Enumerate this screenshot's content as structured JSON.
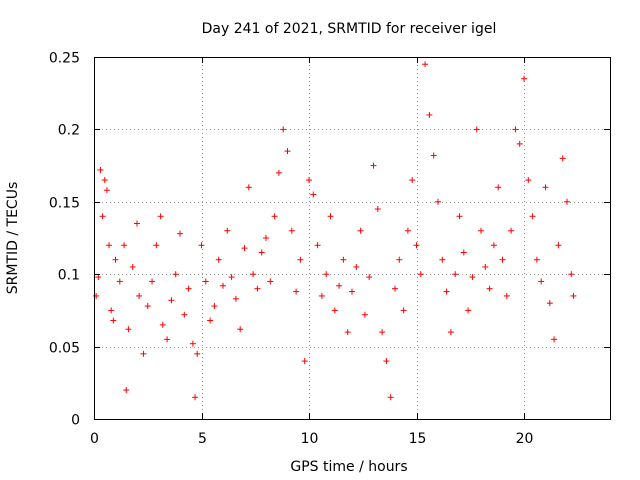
{
  "chart_data": {
    "type": "scatter",
    "title": "Day 241 of 2021, SRMTID for receiver igel",
    "xlabel": "GPS time / hours",
    "ylabel": "SRMTID / TECUs",
    "xlim": [
      0,
      24
    ],
    "ylim": [
      0,
      0.25
    ],
    "xticks": [
      0,
      5,
      10,
      15,
      20
    ],
    "xtick_labels": [
      "0",
      "5",
      "10",
      "15",
      "20"
    ],
    "yticks": [
      0,
      0.05,
      0.1,
      0.15,
      0.2,
      0.25
    ],
    "ytick_labels": [
      "0",
      "0.05",
      "0.1",
      "0.15",
      "0.2",
      "0.25"
    ],
    "grid": true,
    "marker": "+",
    "color": "#ff0000",
    "series": [
      {
        "name": "SRMTID",
        "points": [
          [
            0.1,
            0.085
          ],
          [
            0.2,
            0.098
          ],
          [
            0.3,
            0.172
          ],
          [
            0.4,
            0.14
          ],
          [
            0.5,
            0.165
          ],
          [
            0.6,
            0.158
          ],
          [
            0.7,
            0.12
          ],
          [
            0.8,
            0.075
          ],
          [
            0.9,
            0.068
          ],
          [
            1.0,
            0.11
          ],
          [
            1.2,
            0.095
          ],
          [
            1.4,
            0.12
          ],
          [
            1.5,
            0.02
          ],
          [
            1.6,
            0.062
          ],
          [
            1.8,
            0.105
          ],
          [
            2.0,
            0.135
          ],
          [
            2.1,
            0.085
          ],
          [
            2.3,
            0.045
          ],
          [
            2.5,
            0.078
          ],
          [
            2.7,
            0.095
          ],
          [
            2.9,
            0.12
          ],
          [
            3.1,
            0.14
          ],
          [
            3.2,
            0.065
          ],
          [
            3.4,
            0.055
          ],
          [
            3.6,
            0.082
          ],
          [
            3.8,
            0.1
          ],
          [
            4.0,
            0.128
          ],
          [
            4.2,
            0.072
          ],
          [
            4.4,
            0.09
          ],
          [
            4.6,
            0.052
          ],
          [
            4.7,
            0.015
          ],
          [
            4.8,
            0.045
          ],
          [
            5.0,
            0.12
          ],
          [
            5.2,
            0.095
          ],
          [
            5.4,
            0.068
          ],
          [
            5.6,
            0.078
          ],
          [
            5.8,
            0.11
          ],
          [
            6.0,
            0.092
          ],
          [
            6.2,
            0.13
          ],
          [
            6.4,
            0.098
          ],
          [
            6.6,
            0.083
          ],
          [
            6.8,
            0.062
          ],
          [
            7.0,
            0.118
          ],
          [
            7.2,
            0.16
          ],
          [
            7.4,
            0.1
          ],
          [
            7.6,
            0.09
          ],
          [
            7.8,
            0.115
          ],
          [
            8.0,
            0.125
          ],
          [
            8.2,
            0.095
          ],
          [
            8.4,
            0.14
          ],
          [
            8.6,
            0.17
          ],
          [
            8.8,
            0.2
          ],
          [
            9.0,
            0.185
          ],
          [
            9.2,
            0.13
          ],
          [
            9.4,
            0.088
          ],
          [
            9.6,
            0.11
          ],
          [
            9.8,
            0.04
          ],
          [
            10.0,
            0.165
          ],
          [
            10.2,
            0.155
          ],
          [
            10.4,
            0.12
          ],
          [
            10.6,
            0.085
          ],
          [
            10.8,
            0.1
          ],
          [
            11.0,
            0.14
          ],
          [
            11.2,
            0.075
          ],
          [
            11.4,
            0.092
          ],
          [
            11.6,
            0.11
          ],
          [
            11.8,
            0.06
          ],
          [
            12.0,
            0.088
          ],
          [
            12.2,
            0.105
          ],
          [
            12.4,
            0.13
          ],
          [
            12.6,
            0.072
          ],
          [
            12.8,
            0.098
          ],
          [
            13.0,
            0.175
          ],
          [
            13.2,
            0.145
          ],
          [
            13.4,
            0.06
          ],
          [
            13.6,
            0.04
          ],
          [
            13.8,
            0.015
          ],
          [
            14.0,
            0.09
          ],
          [
            14.2,
            0.11
          ],
          [
            14.4,
            0.075
          ],
          [
            14.6,
            0.13
          ],
          [
            14.8,
            0.165
          ],
          [
            15.0,
            0.12
          ],
          [
            15.2,
            0.1
          ],
          [
            15.4,
            0.245
          ],
          [
            15.6,
            0.21
          ],
          [
            15.8,
            0.182
          ],
          [
            16.0,
            0.15
          ],
          [
            16.2,
            0.11
          ],
          [
            16.4,
            0.088
          ],
          [
            16.6,
            0.06
          ],
          [
            16.8,
            0.1
          ],
          [
            17.0,
            0.14
          ],
          [
            17.2,
            0.115
          ],
          [
            17.4,
            0.075
          ],
          [
            17.6,
            0.098
          ],
          [
            17.8,
            0.2
          ],
          [
            18.0,
            0.13
          ],
          [
            18.2,
            0.105
          ],
          [
            18.4,
            0.09
          ],
          [
            18.6,
            0.12
          ],
          [
            18.8,
            0.16
          ],
          [
            19.0,
            0.11
          ],
          [
            19.2,
            0.085
          ],
          [
            19.4,
            0.13
          ],
          [
            19.6,
            0.2
          ],
          [
            19.8,
            0.19
          ],
          [
            20.0,
            0.235
          ],
          [
            20.2,
            0.165
          ],
          [
            20.4,
            0.14
          ],
          [
            20.6,
            0.11
          ],
          [
            20.8,
            0.095
          ],
          [
            21.0,
            0.16
          ],
          [
            21.2,
            0.08
          ],
          [
            21.4,
            0.055
          ],
          [
            21.6,
            0.12
          ],
          [
            21.8,
            0.18
          ],
          [
            22.0,
            0.15
          ],
          [
            22.2,
            0.1
          ],
          [
            22.3,
            0.085
          ]
        ]
      }
    ]
  }
}
